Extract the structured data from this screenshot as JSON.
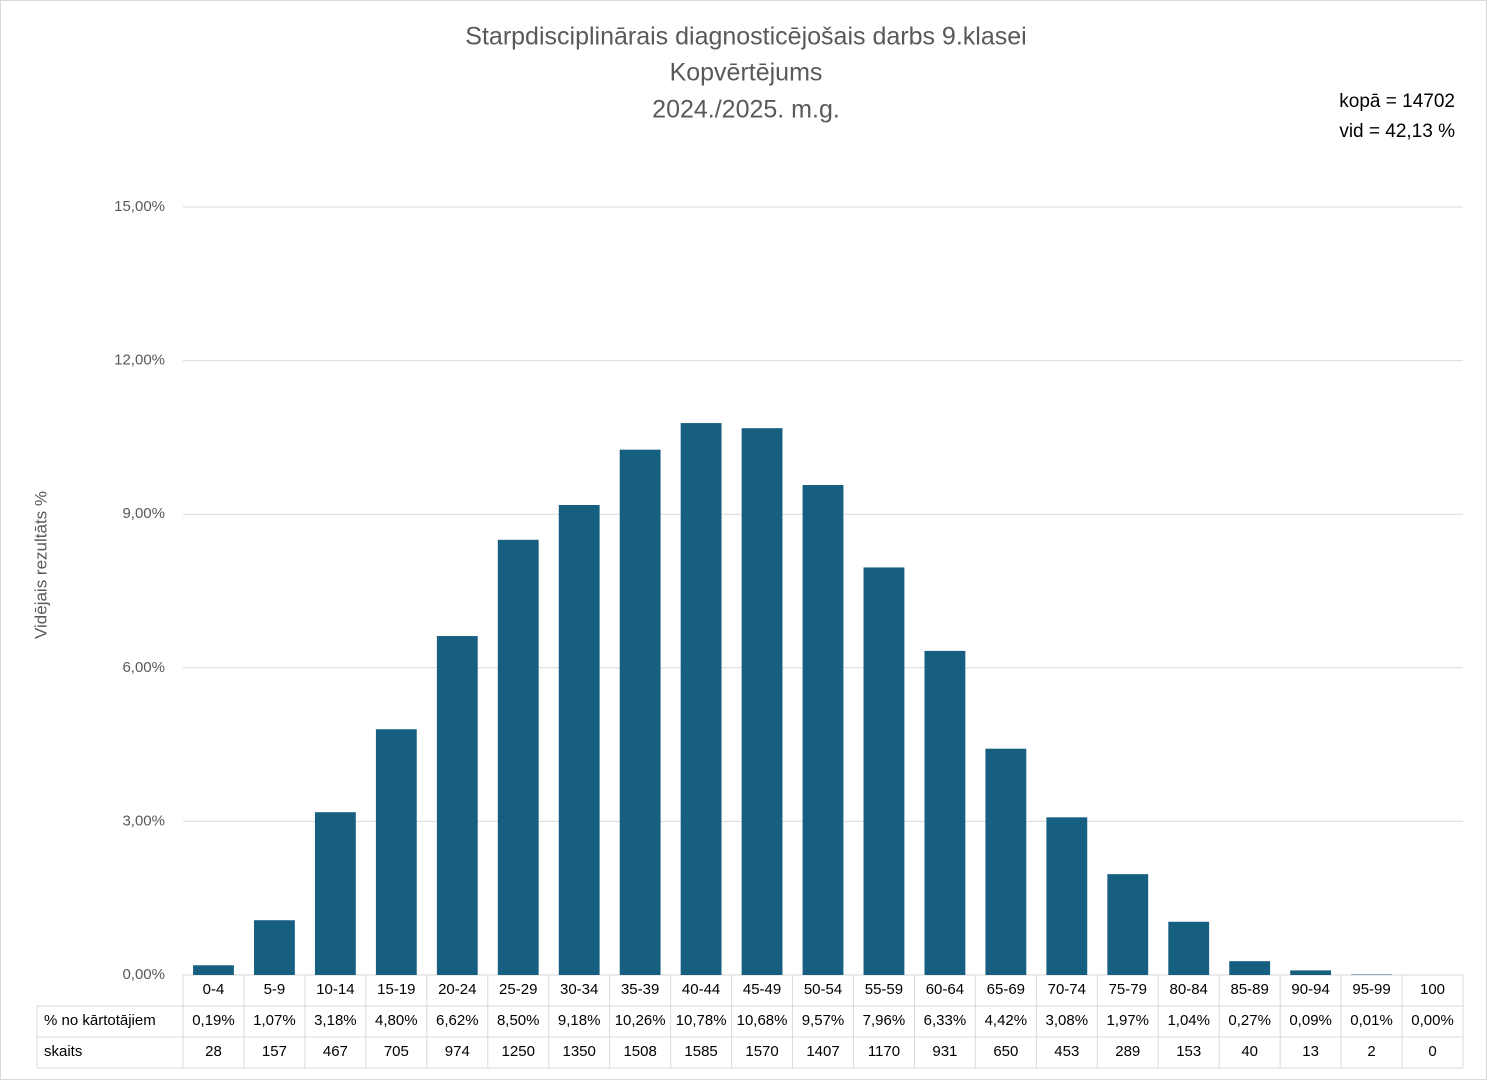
{
  "chart_data": {
    "type": "bar",
    "title": [
      "Starpdisciplinārais diagnosticējošais darbs 9.klasei",
      "Kopvērtējums",
      "2024./2025. m.g."
    ],
    "annotations": [
      "kopā = 14702",
      "vid = 42,13 %"
    ],
    "y_label": "Vidējais rezultāts %",
    "categories": [
      "0-4",
      "5-9",
      "10-14",
      "15-19",
      "20-24",
      "25-29",
      "30-34",
      "35-39",
      "40-44",
      "45-49",
      "50-54",
      "55-59",
      "60-64",
      "65-69",
      "70-74",
      "75-79",
      "80-84",
      "85-89",
      "90-94",
      "95-99",
      "100"
    ],
    "values": [
      0.19,
      1.07,
      3.18,
      4.8,
      6.62,
      8.5,
      9.18,
      10.26,
      10.78,
      10.68,
      9.57,
      7.96,
      6.33,
      4.42,
      3.08,
      1.97,
      1.04,
      0.27,
      0.09,
      0.01,
      0.0
    ],
    "value_labels": [
      "0,19%",
      "1,07%",
      "3,18%",
      "4,80%",
      "6,62%",
      "8,50%",
      "9,18%",
      "10,26%",
      "10,78%",
      "10,68%",
      "9,57%",
      "7,96%",
      "6,33%",
      "4,42%",
      "3,08%",
      "1,97%",
      "1,04%",
      "0,27%",
      "0,09%",
      "0,01%",
      "0,00%"
    ],
    "color": "#175f81",
    "ylim": [
      0,
      15
    ],
    "yticks": [
      {
        "value": 0,
        "label": "0,00%"
      },
      {
        "value": 3,
        "label": "3,00%"
      },
      {
        "value": 6,
        "label": "6,00%"
      },
      {
        "value": 9,
        "label": "9,00%"
      },
      {
        "value": 12,
        "label": "12,00%"
      },
      {
        "value": 15,
        "label": "15,00%"
      }
    ],
    "grid": true,
    "table": {
      "row_labels": [
        "% no kārtotājiem",
        "skaits"
      ],
      "counts": [
        28,
        157,
        467,
        705,
        974,
        1250,
        1350,
        1508,
        1585,
        1570,
        1407,
        1170,
        931,
        650,
        453,
        289,
        153,
        40,
        13,
        2,
        0
      ]
    }
  }
}
